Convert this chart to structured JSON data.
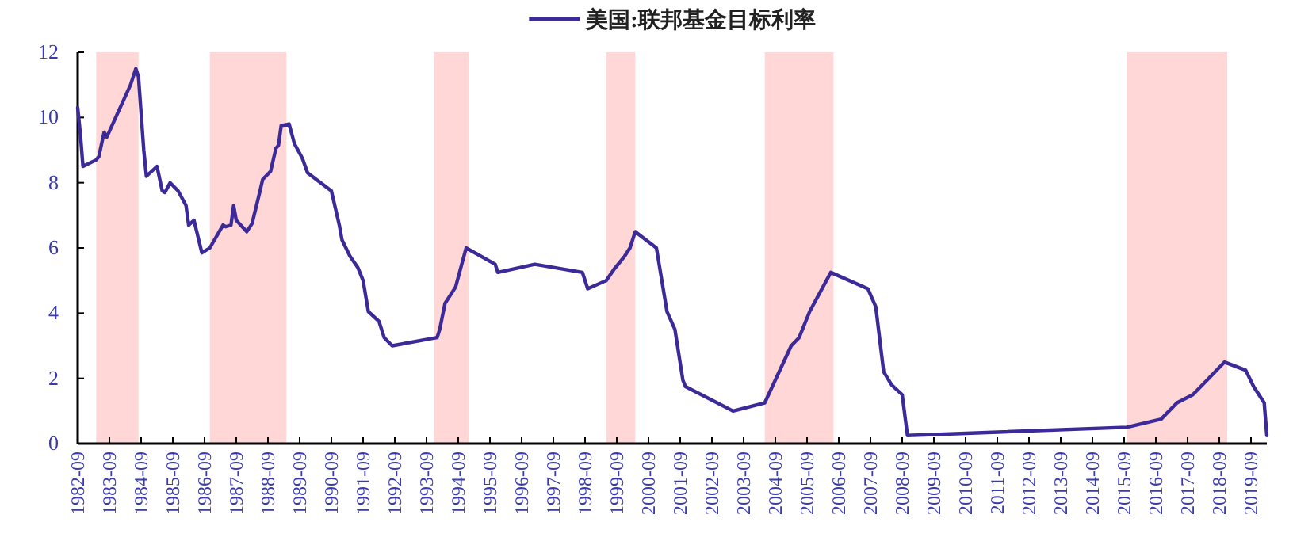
{
  "chart_data": {
    "type": "line",
    "legend": "top",
    "xlim": [
      "1982-09",
      "2020-03"
    ],
    "ylim": [
      0,
      12
    ],
    "yticks": [
      0,
      2,
      4,
      6,
      8,
      10,
      12
    ],
    "xticks": [
      "1982-09",
      "1983-09",
      "1984-09",
      "1985-09",
      "1986-09",
      "1987-09",
      "1988-09",
      "1989-09",
      "1990-09",
      "1991-09",
      "1992-09",
      "1993-09",
      "1994-09",
      "1995-09",
      "1996-09",
      "1997-09",
      "1998-09",
      "1999-09",
      "2000-09",
      "2001-09",
      "2002-09",
      "2003-09",
      "2004-09",
      "2005-09",
      "2006-09",
      "2007-09",
      "2008-09",
      "2009-09",
      "2010-09",
      "2011-09",
      "2012-09",
      "2013-09",
      "2014-09",
      "2015-09",
      "2016-09",
      "2017-09",
      "2018-09",
      "2019-09"
    ],
    "bands": [
      {
        "axis": "x",
        "from": "1983-04",
        "to": "1984-08",
        "color": "#ffd7d7"
      },
      {
        "axis": "x",
        "from": "1986-11",
        "to": "1989-04",
        "color": "#ffd7d7"
      },
      {
        "axis": "x",
        "from": "1993-12",
        "to": "1995-01",
        "color": "#ffd7d7"
      },
      {
        "axis": "x",
        "from": "1999-05",
        "to": "2000-04",
        "color": "#ffd7d7"
      },
      {
        "axis": "x",
        "from": "2004-05",
        "to": "2006-07",
        "color": "#ffd7d7"
      },
      {
        "axis": "x",
        "from": "2015-10",
        "to": "2018-12",
        "color": "#ffd7d7"
      }
    ],
    "series": [
      {
        "name": "美国:联邦基金目标利率",
        "color": "#3c2a98",
        "x": [
          "1982-09",
          "1982-10",
          "1982-11",
          "1983-04",
          "1983-05",
          "1983-07",
          "1983-08",
          "1984-05",
          "1984-07",
          "1984-08",
          "1984-10",
          "1984-11",
          "1985-01",
          "1985-03",
          "1985-05",
          "1985-06",
          "1985-08",
          "1985-11",
          "1986-01",
          "1986-02",
          "1986-03",
          "1986-05",
          "1986-08",
          "1986-11",
          "1987-04",
          "1987-05",
          "1987-07",
          "1987-08",
          "1987-09",
          "1988-01",
          "1988-03",
          "1988-06",
          "1988-07",
          "1988-10",
          "1988-12",
          "1989-01",
          "1989-02",
          "1989-05",
          "1989-07",
          "1989-10",
          "1989-12",
          "1990-09",
          "1990-12",
          "1991-01",
          "1991-04",
          "1991-07",
          "1991-09",
          "1991-11",
          "1992-03",
          "1992-05",
          "1992-08",
          "1994-01",
          "1994-02",
          "1994-04",
          "1994-08",
          "1994-12",
          "1995-11",
          "1995-12",
          "1997-02",
          "1998-08",
          "1998-10",
          "1999-05",
          "1999-08",
          "1999-12",
          "2000-02",
          "2000-04",
          "2000-12",
          "2001-04",
          "2001-07",
          "2001-10",
          "2001-11",
          "2003-05",
          "2004-05",
          "2005-03",
          "2005-06",
          "2005-10",
          "2006-06",
          "2007-08",
          "2007-11",
          "2008-02",
          "2008-05",
          "2008-09",
          "2008-11",
          "2015-10",
          "2016-11",
          "2017-05",
          "2017-11",
          "2018-02",
          "2018-05",
          "2018-11",
          "2019-07",
          "2019-10",
          "2020-02",
          "2020-03"
        ],
        "values": [
          10.3,
          9.5,
          8.5,
          8.7,
          8.8,
          9.55,
          9.4,
          11.0,
          11.5,
          11.25,
          9.0,
          8.2,
          8.35,
          8.5,
          7.75,
          7.7,
          8.0,
          7.75,
          7.45,
          7.3,
          6.7,
          6.85,
          5.85,
          6.0,
          6.7,
          6.65,
          6.7,
          7.3,
          6.85,
          6.5,
          6.75,
          7.75,
          8.1,
          8.35,
          9.05,
          9.15,
          9.75,
          9.8,
          9.2,
          8.75,
          8.3,
          7.75,
          6.7,
          6.25,
          5.75,
          5.4,
          5.0,
          4.05,
          3.75,
          3.25,
          3.0,
          3.25,
          3.5,
          4.3,
          4.8,
          6.0,
          5.5,
          5.25,
          5.5,
          5.25,
          4.75,
          5.0,
          5.35,
          5.75,
          6.0,
          6.5,
          6.0,
          4.05,
          3.5,
          1.95,
          1.75,
          1.0,
          1.25,
          3.0,
          3.25,
          4.05,
          5.25,
          4.75,
          4.2,
          2.2,
          1.8,
          1.5,
          0.25,
          0.5,
          0.75,
          1.25,
          1.5,
          1.75,
          2.0,
          2.5,
          2.25,
          1.75,
          1.25,
          0.25
        ]
      }
    ]
  }
}
